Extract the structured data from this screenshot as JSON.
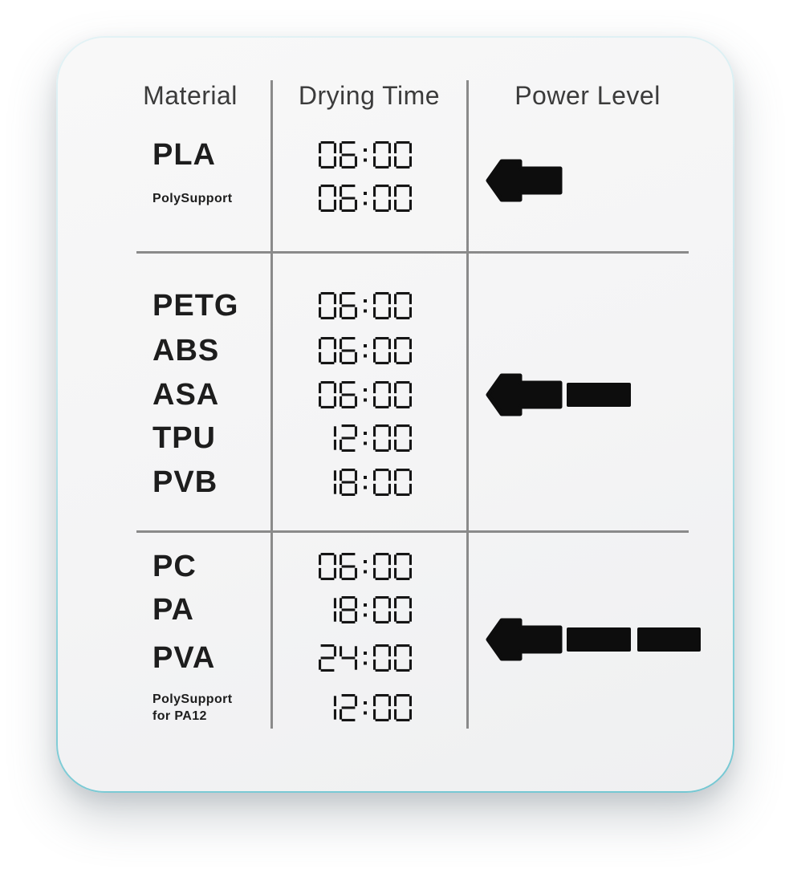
{
  "table": {
    "columns": [
      "Material",
      "Drying Time",
      "Power Level"
    ],
    "groups": [
      {
        "power_level": 1,
        "rows": [
          {
            "material": "PLA",
            "time": "06:00",
            "small": false
          },
          {
            "material": "PolySupport",
            "time": "06:00",
            "small": true
          }
        ]
      },
      {
        "power_level": 2,
        "rows": [
          {
            "material": "PETG",
            "time": "06:00",
            "small": false
          },
          {
            "material": "ABS",
            "time": "06:00",
            "small": false
          },
          {
            "material": "ASA",
            "time": "06:00",
            "small": false
          },
          {
            "material": "TPU",
            "time": "12:00",
            "small": false
          },
          {
            "material": "PVB",
            "time": "18:00",
            "small": false
          }
        ]
      },
      {
        "power_level": 3,
        "rows": [
          {
            "material": "PC",
            "time": "06:00",
            "small": false
          },
          {
            "material": "PA",
            "time": "18:00",
            "small": false
          },
          {
            "material": "PVA",
            "time": "24:00",
            "small": false
          },
          {
            "material": "PolySupport\nfor PA12",
            "time": "12:00",
            "small": true
          }
        ]
      }
    ]
  },
  "icons": {
    "power_level": "left-arrow-with-power-bars"
  },
  "colors": {
    "page_background": "#ffffff",
    "card_background": "#f4f4f5",
    "card_border_top": "#d9eef1",
    "card_border_bottom": "#74c7d2",
    "divider_gray": "#8a8a8a",
    "header_text": "#3b3b3b",
    "material_text": "#1d1d1d",
    "digital_text": "#151515",
    "icon_black": "#0d0d0d"
  },
  "chart_data": {
    "type": "table",
    "columns": [
      "Material",
      "Drying Time",
      "Power Level"
    ],
    "rows": [
      [
        "PLA",
        "06:00",
        1
      ],
      [
        "PolySupport",
        "06:00",
        1
      ],
      [
        "PETG",
        "06:00",
        2
      ],
      [
        "ABS",
        "06:00",
        2
      ],
      [
        "ASA",
        "06:00",
        2
      ],
      [
        "TPU",
        "12:00",
        2
      ],
      [
        "PVB",
        "18:00",
        2
      ],
      [
        "PC",
        "06:00",
        3
      ],
      [
        "PA",
        "18:00",
        3
      ],
      [
        "PVA",
        "24:00",
        3
      ],
      [
        "PolySupport for PA12",
        "12:00",
        3
      ]
    ],
    "notes": "Drying times rendered as seven-segment digital clock digits; power level rendered as a black left-pointing arrow icon with 1 to 3 bar segments"
  }
}
